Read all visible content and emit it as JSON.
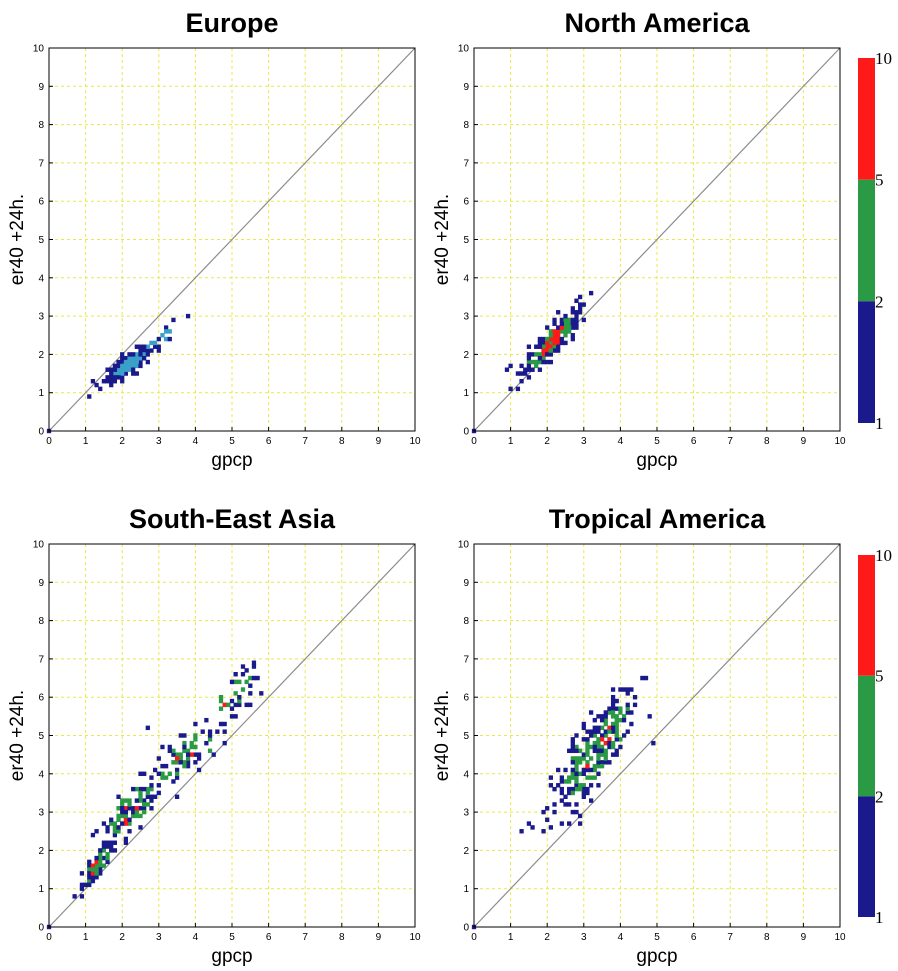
{
  "colors": {
    "bin_1_2": "#1a1a8c",
    "bin_2_5": "#2a9a45",
    "bin_5_10": "#ff1a1a",
    "bin_mixed": "#3aa0c8",
    "grid": "#e8e84a",
    "diagonal": "#8c8c8c"
  },
  "colorbar": {
    "levels": [
      "1",
      "2",
      "5",
      "10"
    ]
  },
  "chart_data": [
    {
      "type": "heatmap",
      "title": "Europe",
      "xlabel": "gpcp",
      "ylabel": "er40 +24h.",
      "xlim": [
        0,
        10
      ],
      "ylim": [
        0,
        10
      ],
      "xticks": [
        "0",
        "1",
        "2",
        "3",
        "4",
        "5",
        "6",
        "7",
        "8",
        "9",
        "10"
      ],
      "yticks": [
        "0",
        "1",
        "2",
        "3",
        "4",
        "5",
        "6",
        "7",
        "8",
        "9",
        "10"
      ],
      "grid": true,
      "diagonal": true,
      "colorbar": false,
      "clusters": [
        {
          "x": 2.2,
          "y": 1.75,
          "sx": 0.38,
          "sy": 0.28,
          "rho": 0.88,
          "n": 170,
          "hot": 0.35
        },
        {
          "x": 3.0,
          "y": 2.4,
          "sx": 0.3,
          "sy": 0.25,
          "rho": 0.8,
          "n": 18,
          "hot": 0.0
        }
      ],
      "points": [
        [
          1.15,
          0.85
        ],
        [
          3.8,
          2.95
        ],
        [
          0.0,
          0.0
        ]
      ]
    },
    {
      "type": "heatmap",
      "title": "North America",
      "xlabel": "gpcp",
      "ylabel": "er40 +24h.",
      "xlim": [
        0,
        10
      ],
      "ylim": [
        0,
        10
      ],
      "xticks": [
        "0",
        "1",
        "2",
        "3",
        "4",
        "5",
        "6",
        "7",
        "8",
        "9",
        "10"
      ],
      "yticks": [
        "0",
        "1",
        "2",
        "3",
        "4",
        "5",
        "6",
        "7",
        "8",
        "9",
        "10"
      ],
      "grid": true,
      "diagonal": true,
      "colorbar": true,
      "clusters": [
        {
          "x": 2.1,
          "y": 2.3,
          "sx": 0.38,
          "sy": 0.42,
          "rho": 0.9,
          "n": 200,
          "hot": 0.55
        }
      ],
      "points": [
        [
          1.0,
          1.05
        ],
        [
          2.9,
          3.5
        ],
        [
          1.35,
          1.5
        ],
        [
          0.0,
          0.0
        ]
      ]
    },
    {
      "type": "heatmap",
      "title": "South-East Asia",
      "xlabel": "gpcp",
      "ylabel": "er40 +24h.",
      "xlim": [
        0,
        10
      ],
      "ylim": [
        0,
        10
      ],
      "xticks": [
        "0",
        "1",
        "2",
        "3",
        "4",
        "5",
        "6",
        "7",
        "8",
        "9",
        "10"
      ],
      "yticks": [
        "0",
        "1",
        "2",
        "3",
        "4",
        "5",
        "6",
        "7",
        "8",
        "9",
        "10"
      ],
      "grid": true,
      "diagonal": true,
      "colorbar": false,
      "clusters": [
        {
          "x": 1.3,
          "y": 1.6,
          "sx": 0.22,
          "sy": 0.32,
          "rho": 0.85,
          "n": 75,
          "hot": 0.2
        },
        {
          "x": 2.2,
          "y": 3.0,
          "sx": 0.4,
          "sy": 0.45,
          "rho": 0.75,
          "n": 110,
          "hot": 0.12
        },
        {
          "x": 3.8,
          "y": 4.5,
          "sx": 0.5,
          "sy": 0.45,
          "rho": 0.7,
          "n": 75,
          "hot": 0.05
        },
        {
          "x": 5.1,
          "y": 6.0,
          "sx": 0.38,
          "sy": 0.45,
          "rho": 0.7,
          "n": 45,
          "hot": 0.08
        }
      ],
      "points": [
        [
          0.0,
          0.0
        ],
        [
          5.8,
          6.1
        ],
        [
          3.5,
          3.4
        ],
        [
          2.7,
          5.2
        ]
      ]
    },
    {
      "type": "heatmap",
      "title": "Tropical America",
      "xlabel": "gpcp",
      "ylabel": "er40 +24h.",
      "xlim": [
        0,
        10
      ],
      "ylim": [
        0,
        10
      ],
      "xticks": [
        "0",
        "1",
        "2",
        "3",
        "4",
        "5",
        "6",
        "7",
        "8",
        "9",
        "10"
      ],
      "yticks": [
        "0",
        "1",
        "2",
        "3",
        "4",
        "5",
        "6",
        "7",
        "8",
        "9",
        "10"
      ],
      "grid": true,
      "diagonal": true,
      "colorbar": true,
      "clusters": [
        {
          "x": 3.3,
          "y": 4.6,
          "sx": 0.62,
          "sy": 0.85,
          "rho": 0.85,
          "n": 280,
          "hot": 0.06
        }
      ],
      "points": [
        [
          0.0,
          0.0
        ],
        [
          4.9,
          4.75
        ],
        [
          4.8,
          5.5
        ],
        [
          2.2,
          3.05
        ]
      ]
    }
  ]
}
